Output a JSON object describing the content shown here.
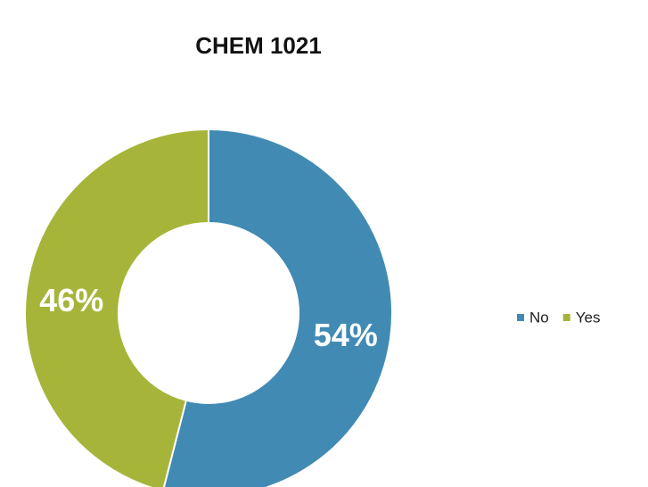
{
  "chart_data": {
    "type": "donut",
    "title": "CHEM 1021",
    "categories": [
      "No",
      "Yes"
    ],
    "values": [
      54,
      46
    ],
    "value_labels": [
      "54%",
      "46%"
    ],
    "colors": [
      "#418ab3",
      "#a6b53a"
    ],
    "legend": "right"
  }
}
